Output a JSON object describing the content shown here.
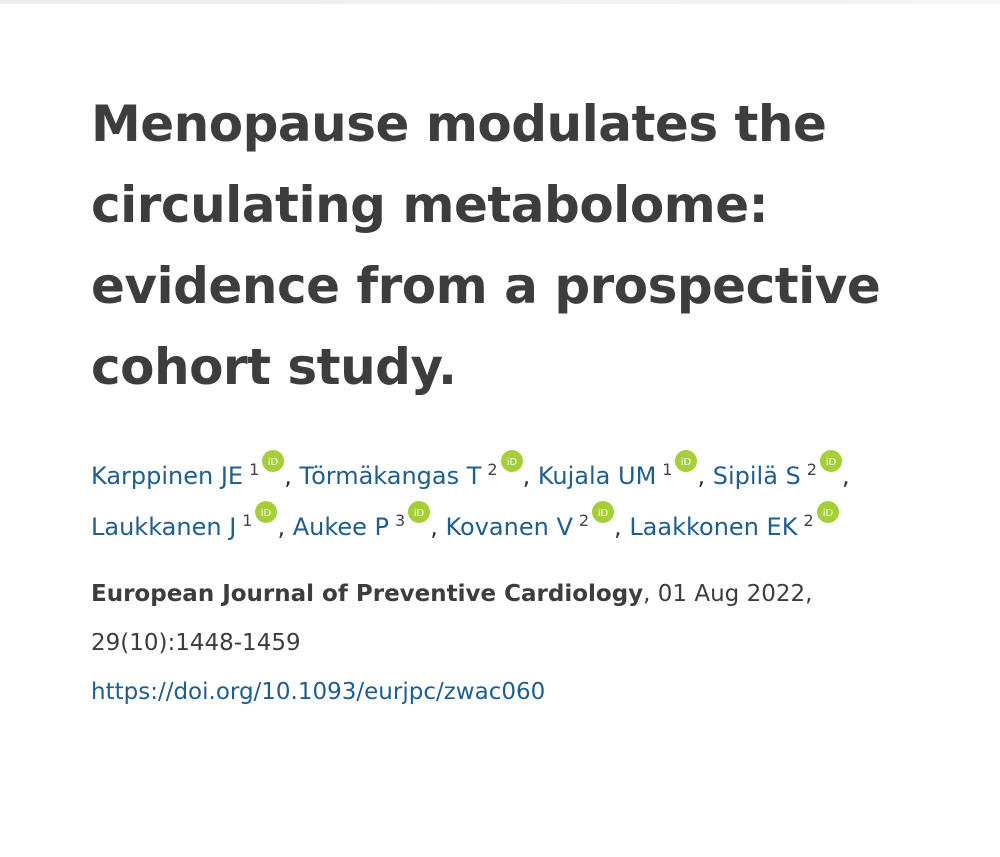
{
  "article": {
    "title": "Menopause modulates the circulating metabolome: evidence from a prospective cohort study."
  },
  "authors": [
    {
      "name": "Karppinen JE",
      "affiliation": "1",
      "separator": ", "
    },
    {
      "name": "Törmäkangas T",
      "affiliation": "2",
      "separator": ", "
    },
    {
      "name": "Kujala UM",
      "affiliation": "1",
      "separator": ", "
    },
    {
      "name": "Sipilä S",
      "affiliation": "2",
      "separator": ", "
    },
    {
      "name": "Laukkanen J",
      "affiliation": "1",
      "separator": ", "
    },
    {
      "name": "Aukee P",
      "affiliation": "3",
      "separator": ", "
    },
    {
      "name": "Kovanen V",
      "affiliation": "2",
      "separator": ", "
    },
    {
      "name": "Laakkonen EK",
      "affiliation": "2",
      "separator": ""
    }
  ],
  "orcid": {
    "icon": "orcid-icon",
    "label": "iD",
    "color": "#a6ce39"
  },
  "citation": {
    "journal": "European Journal of Preventive Cardiology",
    "date": ", 01 Aug 2022, ",
    "volume_pages": "29(10):1448-1459",
    "doi": "https://doi.org/10.1093/eurjpc/zwac060"
  },
  "colors": {
    "title": "#3d3d3d",
    "link": "#1f5e8f"
  }
}
